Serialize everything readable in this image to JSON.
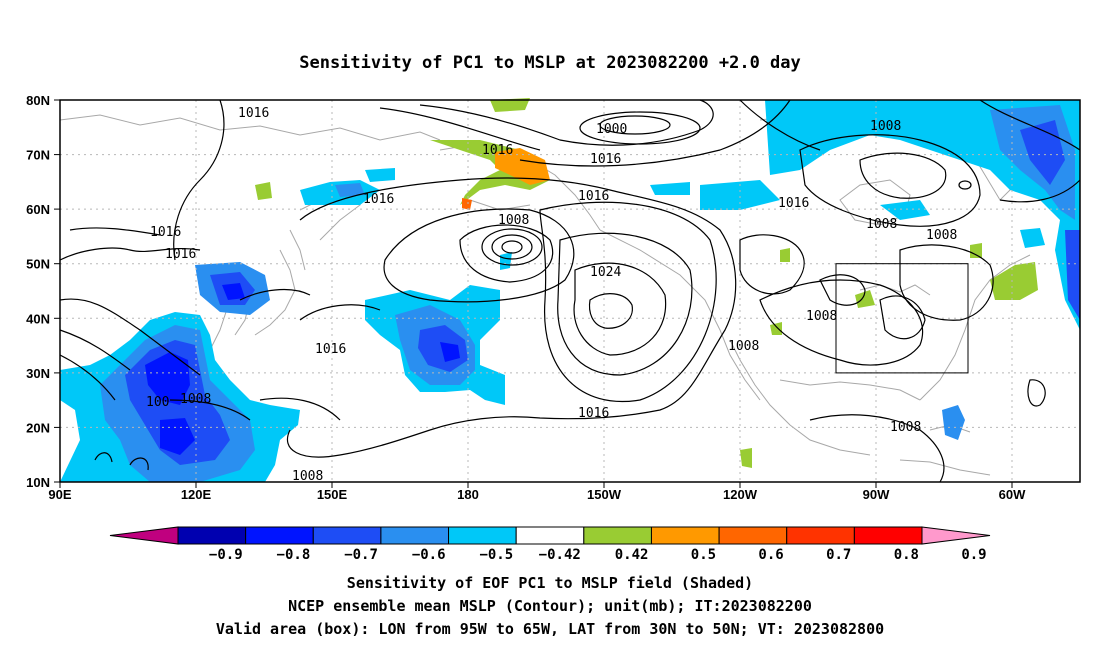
{
  "title": "Sensitivity of PC1 to MSLP at 2023082200 +2.0 day",
  "lat_labels": [
    "80N",
    "70N",
    "60N",
    "50N",
    "40N",
    "30N",
    "20N",
    "10N"
  ],
  "lon_labels": [
    "90E",
    "120E",
    "150E",
    "180",
    "150W",
    "120W",
    "90W",
    "60W"
  ],
  "contour_labels": [
    "1016",
    "1016",
    "1016",
    "1016",
    "1016",
    "1016",
    "1016",
    "1016",
    "1016",
    "1016",
    "1000",
    "1008",
    "1008",
    "1008",
    "1008",
    "1008",
    "1008",
    "1008",
    "1008",
    "1024",
    "1008"
  ],
  "colorbar": {
    "ticks": [
      "-0.9",
      "-0.8",
      "-0.7",
      "-0.6",
      "-0.5",
      "-0.42",
      "0.42",
      "0.5",
      "0.6",
      "0.7",
      "0.8",
      "0.9"
    ],
    "colors": [
      "#c0007f",
      "#0000b0",
      "#0014ff",
      "#1e4df5",
      "#2a8ff0",
      "#00c8f8",
      "#ffffff",
      "#99cc33",
      "#ff9900",
      "#ff6600",
      "#ff3300",
      "#ff0000",
      "#ff99cc"
    ]
  },
  "captions": {
    "line1": "Sensitivity of EOF PC1 to MSLP field (Shaded)",
    "line2": "NCEP ensemble mean MSLP (Contour); unit(mb); IT:2023082200",
    "line3": "Valid area (box): LON from 95W to 65W, LAT from 30N to 50N; VT: 2023082800"
  }
}
